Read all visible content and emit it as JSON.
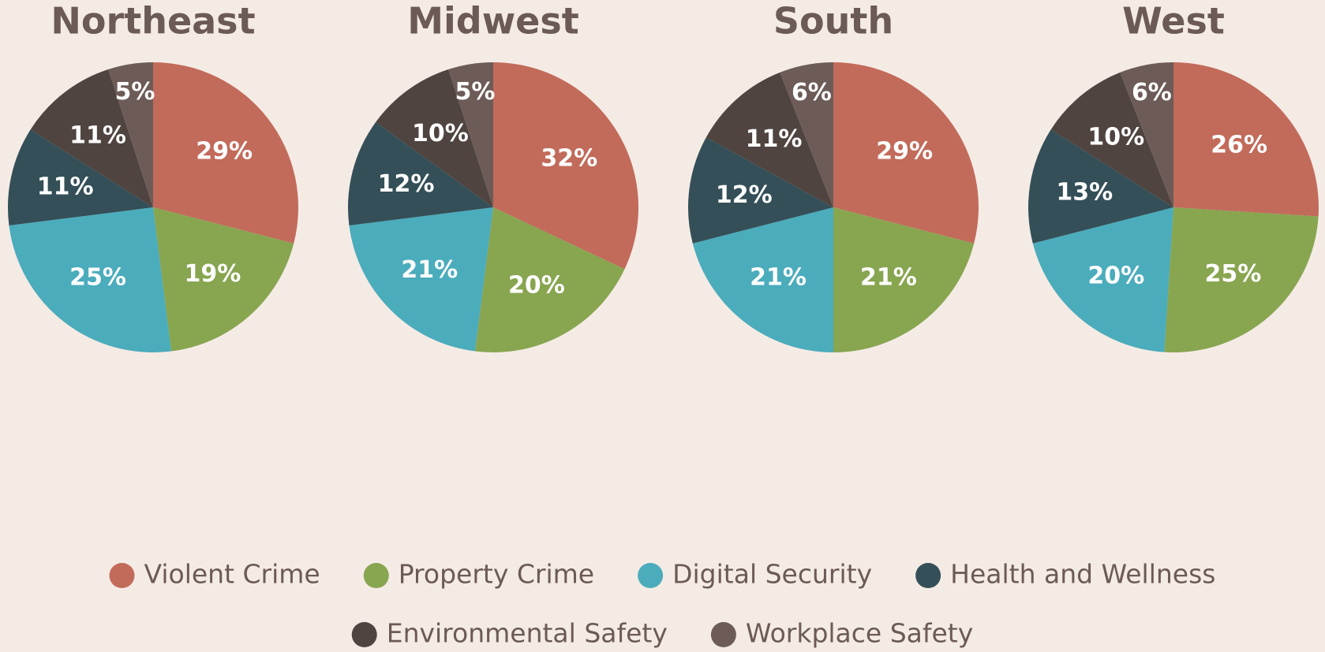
{
  "chart_data": [
    {
      "type": "pie",
      "title": "Northeast",
      "categories": [
        "Violent Crime",
        "Property Crime",
        "Digital Security",
        "Health and Wellness",
        "Environmental Safety",
        "Workplace Safety"
      ],
      "values": [
        29,
        19,
        25,
        11,
        11,
        5
      ],
      "value_labels": [
        "29%",
        "19%",
        "25%",
        "11%",
        "11%",
        "5%"
      ],
      "colors": [
        "#c26b5b",
        "#88a550",
        "#4bacbc",
        "#344f58",
        "#4f4440",
        "#6d5b57"
      ]
    },
    {
      "type": "pie",
      "title": "Midwest",
      "categories": [
        "Violent Crime",
        "Property Crime",
        "Digital Security",
        "Health and Wellness",
        "Environmental Safety",
        "Workplace Safety"
      ],
      "values": [
        32,
        20,
        21,
        12,
        10,
        5
      ],
      "value_labels": [
        "32%",
        "20%",
        "21%",
        "12%",
        "10%",
        "5%"
      ],
      "colors": [
        "#c26b5b",
        "#88a550",
        "#4bacbc",
        "#344f58",
        "#4f4440",
        "#6d5b57"
      ]
    },
    {
      "type": "pie",
      "title": "South",
      "categories": [
        "Violent Crime",
        "Property Crime",
        "Digital Security",
        "Health and Wellness",
        "Environmental Safety",
        "Workplace Safety"
      ],
      "values": [
        29,
        21,
        21,
        12,
        11,
        6
      ],
      "value_labels": [
        "29%",
        "21%",
        "21%",
        "12%",
        "11%",
        "6%"
      ],
      "colors": [
        "#c26b5b",
        "#88a550",
        "#4bacbc",
        "#344f58",
        "#4f4440",
        "#6d5b57"
      ]
    },
    {
      "type": "pie",
      "title": "West",
      "categories": [
        "Violent Crime",
        "Property Crime",
        "Digital Security",
        "Health and Wellness",
        "Environmental Safety",
        "Workplace Safety"
      ],
      "values": [
        26,
        25,
        20,
        13,
        10,
        6
      ],
      "value_labels": [
        "26%",
        "25%",
        "20%",
        "13%",
        "10%",
        "6%"
      ],
      "colors": [
        "#c26b5b",
        "#88a550",
        "#4bacbc",
        "#344f58",
        "#4f4440",
        "#6d5b57"
      ]
    }
  ]
}
